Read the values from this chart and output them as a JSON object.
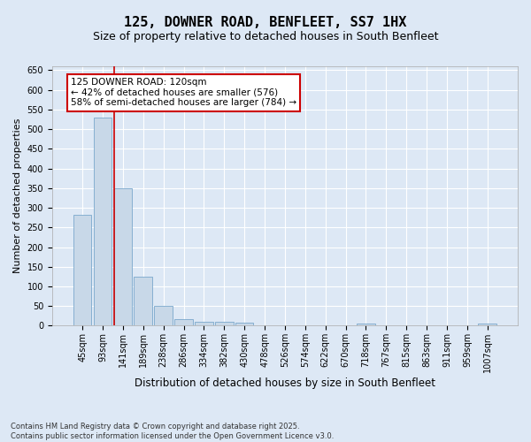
{
  "title": "125, DOWNER ROAD, BENFLEET, SS7 1HX",
  "subtitle": "Size of property relative to detached houses in South Benfleet",
  "xlabel": "Distribution of detached houses by size in South Benfleet",
  "ylabel": "Number of detached properties",
  "bar_color": "#c8d8e8",
  "bar_edge_color": "#7aa8cc",
  "background_color": "#dde8f5",
  "grid_color": "#ffffff",
  "fig_bg_color": "#dde8f5",
  "categories": [
    "45sqm",
    "93sqm",
    "141sqm",
    "189sqm",
    "238sqm",
    "286sqm",
    "334sqm",
    "382sqm",
    "430sqm",
    "478sqm",
    "526sqm",
    "574sqm",
    "622sqm",
    "670sqm",
    "718sqm",
    "767sqm",
    "815sqm",
    "863sqm",
    "911sqm",
    "959sqm",
    "1007sqm"
  ],
  "values": [
    283,
    530,
    350,
    125,
    50,
    16,
    11,
    11,
    7,
    0,
    0,
    0,
    0,
    0,
    5,
    0,
    0,
    0,
    0,
    0,
    5
  ],
  "ylim": [
    0,
    660
  ],
  "yticks": [
    0,
    50,
    100,
    150,
    200,
    250,
    300,
    350,
    400,
    450,
    500,
    550,
    600,
    650
  ],
  "vline_pos": 1.58,
  "vline_color": "#cc0000",
  "annotation_title": "125 DOWNER ROAD: 120sqm",
  "annotation_line1": "← 42% of detached houses are smaller (576)",
  "annotation_line2": "58% of semi-detached houses are larger (784) →",
  "annotation_box_color": "#ffffff",
  "annotation_box_edge": "#cc0000",
  "footer_line1": "Contains HM Land Registry data © Crown copyright and database right 2025.",
  "footer_line2": "Contains public sector information licensed under the Open Government Licence v3.0.",
  "title_fontsize": 11,
  "subtitle_fontsize": 9,
  "tick_fontsize": 7,
  "ylabel_fontsize": 8,
  "xlabel_fontsize": 8.5,
  "annotation_fontsize": 7.5,
  "footer_fontsize": 6
}
